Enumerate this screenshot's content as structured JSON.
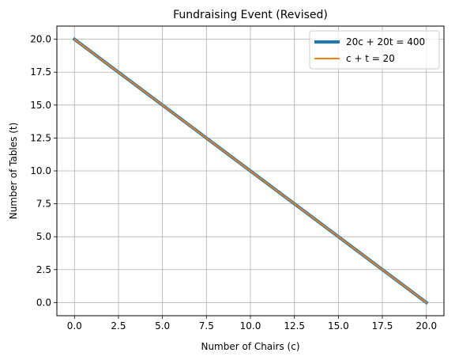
{
  "chart_data": {
    "type": "line",
    "title": "Fundraising Event (Revised)",
    "xlabel": "Number of Chairs (c)",
    "ylabel": "Number of Tables (t)",
    "xlim": [
      -1,
      21
    ],
    "ylim": [
      -1,
      21
    ],
    "xticks": [
      0,
      2.5,
      5,
      7.5,
      10,
      12.5,
      15,
      17.5,
      20
    ],
    "yticks": [
      0,
      2.5,
      5,
      7.5,
      10,
      12.5,
      15,
      17.5,
      20
    ],
    "xtick_labels": [
      "0.0",
      "2.5",
      "5.0",
      "7.5",
      "10.0",
      "12.5",
      "15.0",
      "17.5",
      "20.0"
    ],
    "ytick_labels": [
      "0.0",
      "2.5",
      "5.0",
      "7.5",
      "10.0",
      "12.5",
      "15.0",
      "17.5",
      "20.0"
    ],
    "grid": true,
    "legend_position": "top-right",
    "series": [
      {
        "name": "20c + 20t = 400",
        "x": [
          0,
          20
        ],
        "y": [
          20,
          0
        ],
        "color": "#1f77b4"
      },
      {
        "name": "c + t = 20",
        "x": [
          0,
          20
        ],
        "y": [
          20,
          0
        ],
        "color": "#ff7f0e"
      }
    ]
  }
}
